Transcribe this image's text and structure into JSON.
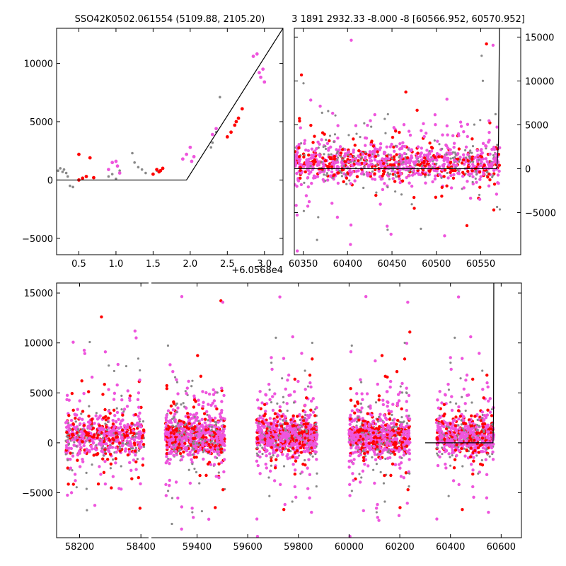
{
  "title_left": "SSO42K0502.061554 (5109.88, 2105.20)",
  "title_right": "3 1891 2932.33 -8.000 -8 [60566.952, 60570.952]",
  "offset_label": "+6.0568e4",
  "colors": {
    "gray": "#888888",
    "red": "#ff0000",
    "pink": "#ee55dd",
    "model": "#000000"
  },
  "chart_data": [
    {
      "name": "zoom",
      "type": "scatter",
      "xlim": [
        0.2,
        3.25
      ],
      "ylim": [
        -6400,
        13000
      ],
      "xticks": [
        0.5,
        1.0,
        1.5,
        2.0,
        2.5,
        3.0
      ],
      "xtick_labels": [
        "0.5",
        "1.0",
        "1.5",
        "2.0",
        "2.5",
        "3.0"
      ],
      "yticks": [
        -5000,
        0,
        5000,
        10000
      ],
      "ytick_labels": [
        "−5000",
        "0",
        "5000",
        "10000"
      ],
      "model": [
        [
          0.2,
          0
        ],
        [
          1.95,
          0
        ],
        [
          3.25,
          13000
        ]
      ],
      "gray": [
        [
          0.22,
          800
        ],
        [
          0.25,
          1000
        ],
        [
          0.28,
          700
        ],
        [
          0.3,
          900
        ],
        [
          0.33,
          600
        ],
        [
          0.35,
          300
        ],
        [
          0.38,
          -500
        ],
        [
          0.42,
          -600
        ],
        [
          0.55,
          200
        ],
        [
          0.9,
          300
        ],
        [
          0.95,
          500
        ],
        [
          1.0,
          100
        ],
        [
          1.05,
          800
        ],
        [
          1.22,
          2300
        ],
        [
          1.25,
          1500
        ],
        [
          1.3,
          1100
        ],
        [
          1.35,
          900
        ],
        [
          1.4,
          600
        ],
        [
          1.55,
          800
        ],
        [
          2.3,
          3200
        ],
        [
          2.35,
          4100
        ],
        [
          2.4,
          7100
        ],
        [
          2.28,
          2800
        ]
      ],
      "red": [
        [
          0.5,
          0
        ],
        [
          0.55,
          150
        ],
        [
          0.6,
          300
        ],
        [
          0.65,
          1900
        ],
        [
          0.5,
          2200
        ],
        [
          0.7,
          200
        ],
        [
          1.5,
          500
        ],
        [
          1.55,
          900
        ],
        [
          1.6,
          800
        ],
        [
          1.63,
          1000
        ],
        [
          1.58,
          700
        ],
        [
          2.5,
          3700
        ],
        [
          2.55,
          4100
        ],
        [
          2.6,
          4700
        ],
        [
          2.62,
          5000
        ],
        [
          2.65,
          5300
        ],
        [
          2.7,
          6100
        ]
      ],
      "pink": [
        [
          0.9,
          900
        ],
        [
          0.95,
          1500
        ],
        [
          1.0,
          1600
        ],
        [
          1.02,
          1200
        ],
        [
          1.05,
          600
        ],
        [
          1.9,
          1800
        ],
        [
          1.95,
          2200
        ],
        [
          2.0,
          2800
        ],
        [
          2.02,
          1600
        ],
        [
          2.05,
          2000
        ],
        [
          2.3,
          3900
        ],
        [
          2.35,
          4400
        ],
        [
          2.85,
          10600
        ],
        [
          2.9,
          10800
        ],
        [
          2.93,
          9200
        ],
        [
          2.95,
          8800
        ],
        [
          2.98,
          9500
        ],
        [
          3.0,
          8400
        ]
      ]
    },
    {
      "name": "recent",
      "type": "scatter",
      "xlim": [
        60340,
        60595
      ],
      "ylim": [
        -9800,
        16000
      ],
      "xticks": [
        60350,
        60400,
        60450,
        60500,
        60550
      ],
      "xtick_labels": [
        "60350",
        "60400",
        "60450",
        "60500",
        "60550"
      ],
      "yticks": [
        -5000,
        0,
        5000,
        10000,
        15000
      ],
      "ytick_labels": [
        "−5000",
        "0",
        "5000",
        "10000",
        "15000"
      ],
      "model": [
        [
          60340,
          0
        ],
        [
          60568,
          0
        ],
        [
          60570,
          3000
        ],
        [
          60571,
          16000
        ]
      ],
      "x_range": [
        60340,
        60572
      ],
      "n_points": 1200
    },
    {
      "name": "full",
      "type": "scatter",
      "broken_x": true,
      "segments": [
        {
          "xlim": [
            58125,
            58425
          ],
          "xticks": [
            58200,
            58400
          ],
          "xtick_labels": [
            "58200",
            "58400"
          ]
        },
        {
          "xlim": [
            59220,
            60680
          ],
          "xticks": [
            59400,
            59600,
            59800,
            60000,
            60200,
            60400,
            60600
          ],
          "xtick_labels": [
            "59400",
            "59600",
            "59800",
            "60000",
            "60200",
            "60400",
            "60600"
          ]
        }
      ],
      "ylim": [
        -9500,
        16000
      ],
      "yticks": [
        -5000,
        0,
        5000,
        10000,
        15000
      ],
      "ytick_labels": [
        "−5000",
        "0",
        "5000",
        "10000",
        "15000"
      ],
      "clusters": [
        {
          "x_range": [
            58155,
            58410
          ],
          "n": 700
        },
        {
          "x_range": [
            59275,
            59510
          ],
          "n": 900
        },
        {
          "x_range": [
            59635,
            59875
          ],
          "n": 900
        },
        {
          "x_range": [
            60000,
            60240
          ],
          "n": 900
        },
        {
          "x_range": [
            60345,
            60572
          ],
          "n": 700
        }
      ],
      "model": [
        [
          60300,
          0
        ],
        [
          60568,
          0
        ],
        [
          60570,
          3000
        ],
        [
          60571,
          16000
        ]
      ]
    }
  ]
}
